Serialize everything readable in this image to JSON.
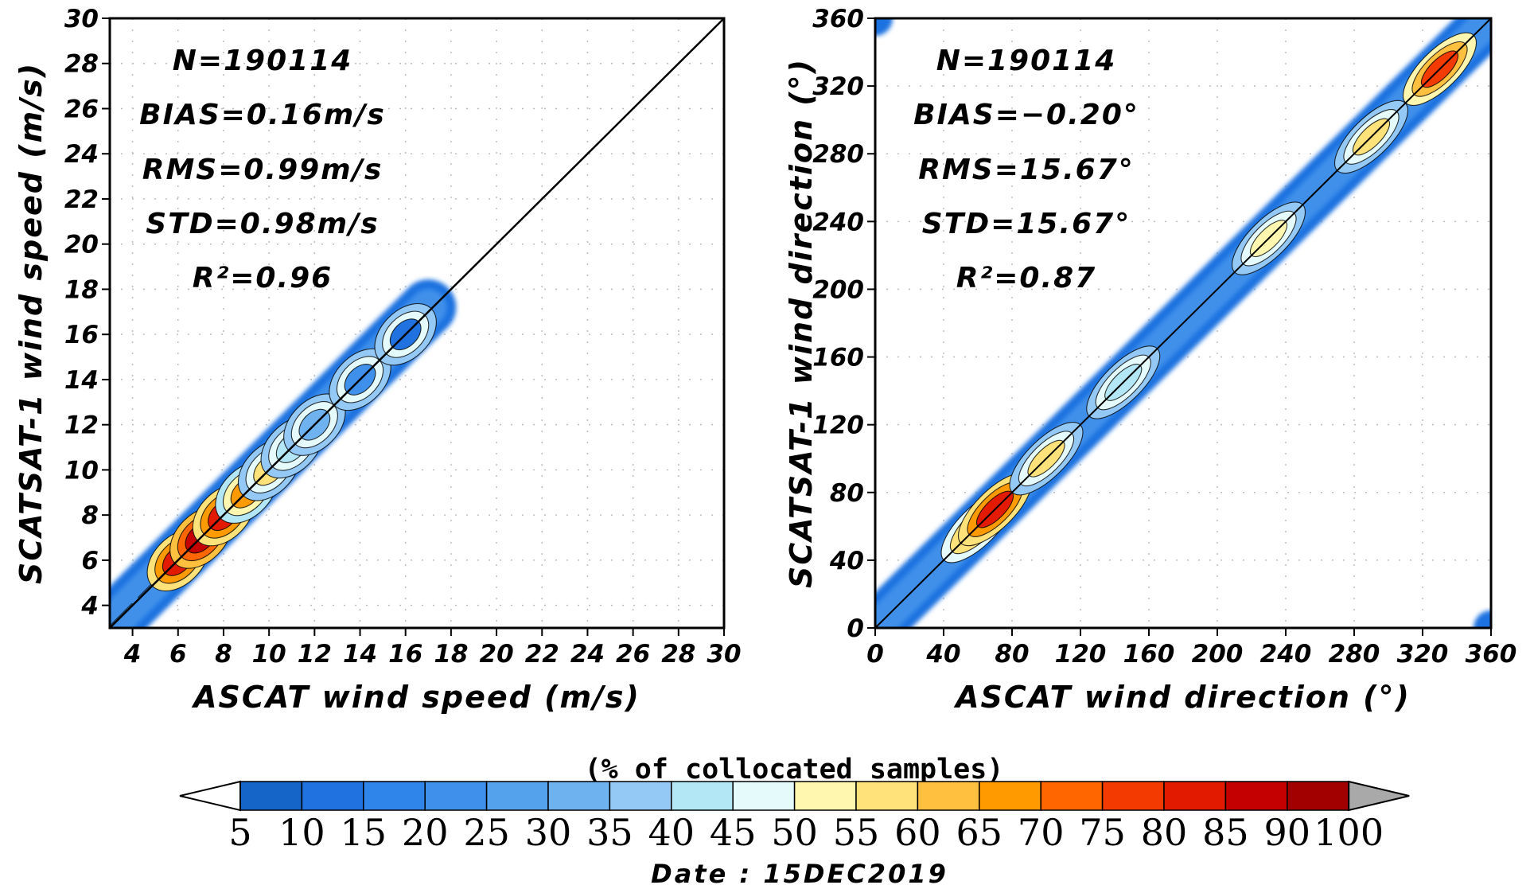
{
  "chart_data": [
    {
      "type": "heatmap",
      "title": "",
      "xlabel": "ASCAT wind speed (m/s)",
      "ylabel": "SCATSAT-1 wind speed (m/s)",
      "xlim": [
        3,
        30
      ],
      "ylim": [
        3,
        30
      ],
      "xticks": [
        4,
        6,
        8,
        10,
        12,
        14,
        16,
        18,
        20,
        22,
        24,
        26,
        28,
        30
      ],
      "yticks": [
        4,
        6,
        8,
        10,
        12,
        14,
        16,
        18,
        20,
        22,
        24,
        26,
        28,
        30
      ],
      "grid": true,
      "stats": [
        "N=190114",
        "BIAS=0.16m/s",
        "RMS=0.99m/s",
        "STD=0.98m/s",
        "R²=0.96"
      ],
      "reference_line": "y=x",
      "density": {
        "ridge": [
          [
            3,
            3.1
          ],
          [
            17,
            17.2
          ]
        ],
        "peaks": [
          {
            "x": 6,
            "y": 6,
            "level": 80
          },
          {
            "x": 7,
            "y": 7,
            "level": 85
          },
          {
            "x": 8,
            "y": 8,
            "level": 80
          },
          {
            "x": 9,
            "y": 9,
            "level": 65
          },
          {
            "x": 10,
            "y": 10,
            "level": 55
          },
          {
            "x": 11,
            "y": 11,
            "level": 40
          },
          {
            "x": 12,
            "y": 12,
            "level": 30
          },
          {
            "x": 14,
            "y": 14,
            "level": 20
          },
          {
            "x": 16,
            "y": 16,
            "level": 10
          }
        ]
      }
    },
    {
      "type": "heatmap",
      "title": "",
      "xlabel": "ASCAT wind direction (°)",
      "ylabel": "SCATSAT-1 wind direction (°)",
      "xlim": [
        0,
        360
      ],
      "ylim": [
        0,
        360
      ],
      "xticks": [
        0,
        40,
        80,
        120,
        160,
        200,
        240,
        280,
        320,
        360
      ],
      "yticks": [
        0,
        40,
        80,
        120,
        160,
        200,
        240,
        280,
        320,
        360
      ],
      "grid": true,
      "stats": [
        "N=190114",
        "BIAS=−0.20°",
        "RMS=15.67°",
        "STD=15.67°",
        "R²=0.87"
      ],
      "reference_line": "y=x",
      "density": {
        "ridge": [
          [
            0,
            0
          ],
          [
            360,
            360
          ]
        ],
        "peaks": [
          {
            "x": 60,
            "y": 60,
            "level": 70
          },
          {
            "x": 70,
            "y": 70,
            "level": 80
          },
          {
            "x": 100,
            "y": 100,
            "level": 55
          },
          {
            "x": 145,
            "y": 145,
            "level": 40
          },
          {
            "x": 230,
            "y": 230,
            "level": 50
          },
          {
            "x": 290,
            "y": 290,
            "level": 55
          },
          {
            "x": 330,
            "y": 330,
            "level": 75
          }
        ]
      }
    }
  ],
  "colorbar": {
    "title": "(% of collocated samples)",
    "labels": [
      "5",
      "10",
      "15",
      "20",
      "25",
      "30",
      "35",
      "40",
      "45",
      "50",
      "55",
      "60",
      "65",
      "70",
      "75",
      "80",
      "85",
      "90",
      "100"
    ],
    "colors": [
      "#1564c8",
      "#1f72e0",
      "#2f85ea",
      "#3f90ea",
      "#55a2ec",
      "#6fb2f0",
      "#95c9f5",
      "#b4e7f5",
      "#e5fbfb",
      "#fff7b0",
      "#ffe27a",
      "#ffbf3f",
      "#ff9a00",
      "#ff6600",
      "#f33a00",
      "#e21a00",
      "#c40000",
      "#a20000",
      "#a9a9a9"
    ],
    "under_color": "#ffffff",
    "over_color": "#a9a9a9"
  },
  "footer": {
    "date": "Date : 15DEC2019"
  }
}
